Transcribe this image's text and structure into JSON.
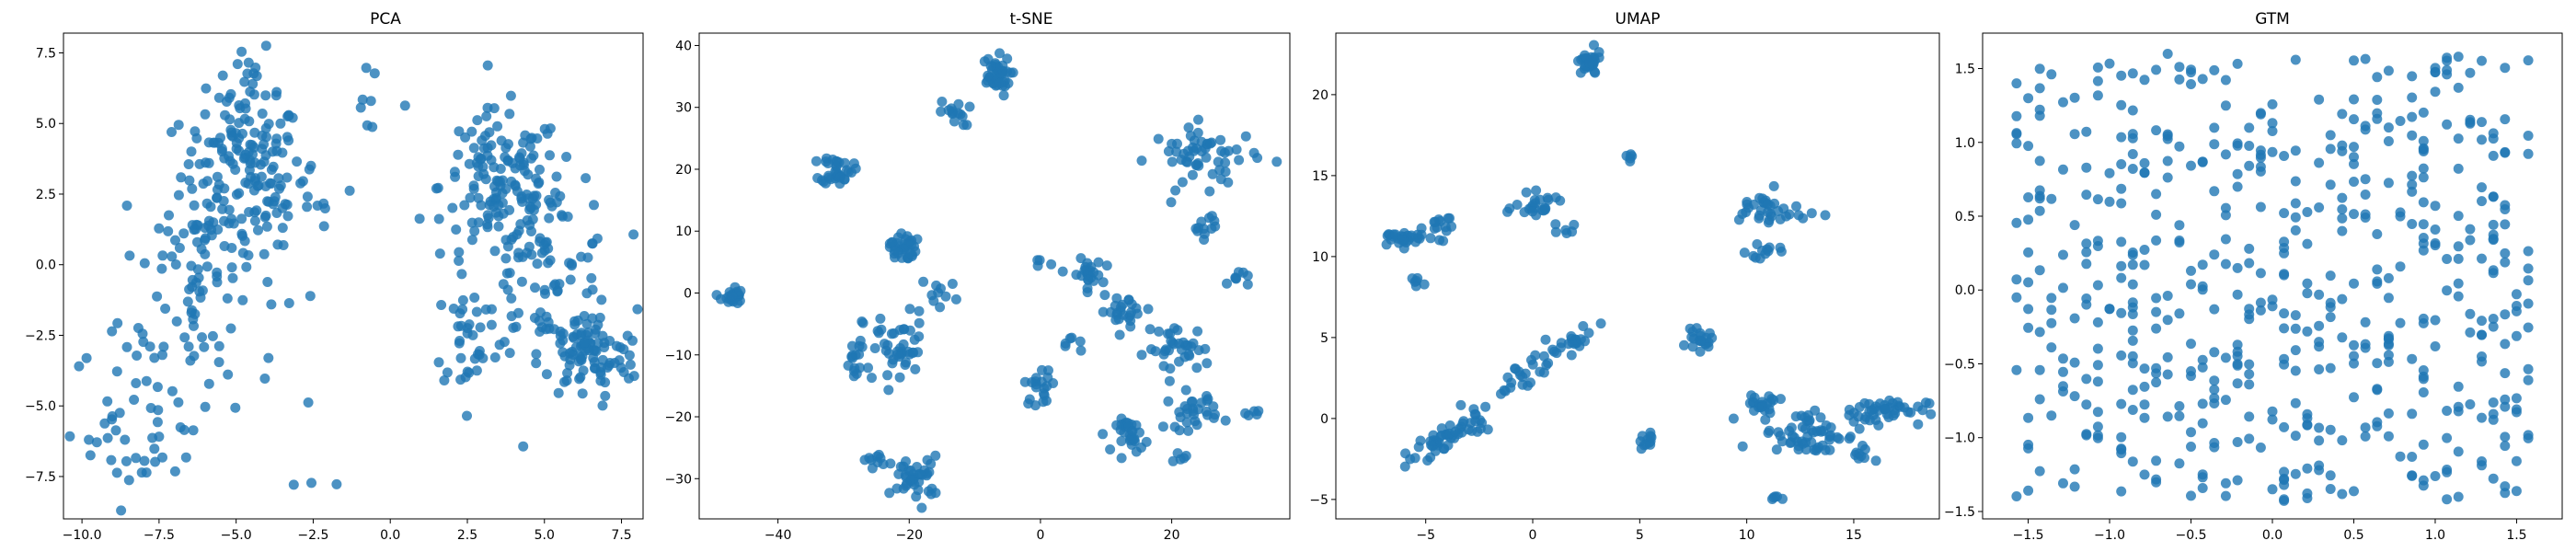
{
  "figure": {
    "point_color": "#1f77b4",
    "point_alpha": 0.8
  },
  "chart_data": [
    {
      "type": "scatter",
      "title": "PCA",
      "xlabel": "",
      "ylabel": "",
      "xlim": [
        -10.6,
        8.2
      ],
      "ylim": [
        -9.0,
        8.2
      ],
      "xticks": [
        -10.0,
        -7.5,
        -5.0,
        -2.5,
        0.0,
        2.5,
        5.0,
        7.5
      ],
      "xtick_labels": [
        "−10.0",
        "−7.5",
        "−5.0",
        "−2.5",
        "0.0",
        "2.5",
        "5.0",
        "7.5"
      ],
      "yticks": [
        -7.5,
        -5.0,
        -2.5,
        0.0,
        2.5,
        5.0,
        7.5
      ],
      "yticklabels": [
        "−7.5",
        "−5.0",
        "−2.5",
        "0.0",
        "2.5",
        "5.0",
        "7.5"
      ],
      "clusters": [
        {
          "cx": -4.8,
          "cy": 3.2,
          "sx": 1.0,
          "sy": 1.4,
          "n": 140
        },
        {
          "cx": -6.2,
          "cy": -0.5,
          "sx": 1.3,
          "sy": 2.2,
          "n": 90
        },
        {
          "cx": -8.0,
          "cy": -5.5,
          "sx": 1.2,
          "sy": 1.5,
          "n": 50
        },
        {
          "cx": -4.5,
          "cy": 6.0,
          "sx": 0.5,
          "sy": 0.8,
          "n": 25
        },
        {
          "cx": -1.0,
          "cy": 5.8,
          "sx": 0.8,
          "sy": 0.5,
          "n": 8
        },
        {
          "cx": 3.6,
          "cy": 2.8,
          "sx": 1.0,
          "sy": 1.3,
          "n": 130
        },
        {
          "cx": 5.0,
          "cy": 0.0,
          "sx": 1.2,
          "sy": 1.6,
          "n": 100
        },
        {
          "cx": 6.4,
          "cy": -3.2,
          "sx": 0.8,
          "sy": 0.8,
          "n": 90
        },
        {
          "cx": 2.6,
          "cy": -2.5,
          "sx": 0.6,
          "sy": 1.0,
          "n": 30
        },
        {
          "cx": -2.5,
          "cy": 2.0,
          "sx": 0.8,
          "sy": 0.8,
          "n": 12
        },
        {
          "cx": -2.0,
          "cy": -7.8,
          "sx": 0.6,
          "sy": 0.1,
          "n": 3
        }
      ]
    },
    {
      "type": "scatter",
      "title": "t-SNE",
      "xlabel": "",
      "ylabel": "",
      "xlim": [
        -52,
        38
      ],
      "ylim": [
        -36.5,
        42
      ],
      "xticks": [
        -40,
        -20,
        0,
        20
      ],
      "xtick_labels": [
        "−40",
        "−20",
        "0",
        "20"
      ],
      "yticks": [
        -30,
        -20,
        -10,
        0,
        10,
        20,
        30,
        40
      ],
      "yticklabels": [
        "−30",
        "−20",
        "−10",
        "0",
        "10",
        "20",
        "30",
        "40"
      ],
      "clusters": [
        {
          "cx": -47,
          "cy": -0.5,
          "sx": 0.8,
          "sy": 0.8,
          "n": 25
        },
        {
          "cx": -31,
          "cy": 20,
          "sx": 1.2,
          "sy": 1.2,
          "n": 35
        },
        {
          "cx": -7,
          "cy": 35,
          "sx": 1.2,
          "sy": 1.6,
          "n": 40
        },
        {
          "cx": -13,
          "cy": 29,
          "sx": 1.2,
          "sy": 1.0,
          "n": 15
        },
        {
          "cx": -21,
          "cy": 7.5,
          "sx": 1.0,
          "sy": 1.2,
          "n": 35
        },
        {
          "cx": -22,
          "cy": -9,
          "sx": 2.5,
          "sy": 3.0,
          "n": 45
        },
        {
          "cx": -28,
          "cy": -12,
          "sx": 1.0,
          "sy": 1.8,
          "n": 15
        },
        {
          "cx": -19,
          "cy": -30,
          "sx": 1.8,
          "sy": 1.8,
          "n": 40
        },
        {
          "cx": -25,
          "cy": -27,
          "sx": 1.0,
          "sy": 0.6,
          "n": 10
        },
        {
          "cx": -15,
          "cy": 0,
          "sx": 1.5,
          "sy": 1.5,
          "n": 10
        },
        {
          "cx": 0,
          "cy": -15,
          "sx": 1.2,
          "sy": 1.5,
          "n": 20
        },
        {
          "cx": 7,
          "cy": 3,
          "sx": 1.2,
          "sy": 1.2,
          "n": 25
        },
        {
          "cx": 13,
          "cy": -3,
          "sx": 2.0,
          "sy": 1.2,
          "n": 25
        },
        {
          "cx": 21,
          "cy": -9,
          "sx": 2.5,
          "sy": 2.0,
          "n": 35
        },
        {
          "cx": 14,
          "cy": -23,
          "sx": 1.2,
          "sy": 1.3,
          "n": 30
        },
        {
          "cx": 23,
          "cy": -19,
          "sx": 2.0,
          "sy": 1.5,
          "n": 30
        },
        {
          "cx": 25,
          "cy": 22,
          "sx": 4.0,
          "sy": 2.5,
          "n": 55
        },
        {
          "cx": 25,
          "cy": 11,
          "sx": 1.0,
          "sy": 1.0,
          "n": 12
        },
        {
          "cx": 30,
          "cy": 2.5,
          "sx": 0.8,
          "sy": 0.8,
          "n": 8
        },
        {
          "cx": 32,
          "cy": -19.5,
          "sx": 0.8,
          "sy": 0.4,
          "n": 5
        },
        {
          "cx": 22,
          "cy": -27,
          "sx": 1.0,
          "sy": 0.5,
          "n": 5
        },
        {
          "cx": 5,
          "cy": -8,
          "sx": 0.8,
          "sy": 0.8,
          "n": 6
        },
        {
          "cx": 0,
          "cy": 5,
          "sx": 0.6,
          "sy": 0.5,
          "n": 4
        }
      ]
    },
    {
      "type": "scatter",
      "title": "UMAP",
      "xlabel": "",
      "ylabel": "",
      "xlim": [
        -9.2,
        19.0
      ],
      "ylim": [
        -6.2,
        23.8
      ],
      "xticks": [
        -5,
        0,
        5,
        10,
        15
      ],
      "xtick_labels": [
        "−5",
        "0",
        "5",
        "10",
        "15"
      ],
      "yticks": [
        -5,
        0,
        5,
        10,
        15,
        20
      ],
      "yticklabels": [
        "−5",
        "0",
        "5",
        "10",
        "15",
        "20"
      ],
      "clusters": [
        {
          "cx": -6.0,
          "cy": 11.1,
          "sx": 0.7,
          "sy": 0.25,
          "n": 30
        },
        {
          "cx": -4.3,
          "cy": 12.2,
          "sx": 0.3,
          "sy": 0.5,
          "n": 12
        },
        {
          "cx": -5.4,
          "cy": 8.6,
          "sx": 0.2,
          "sy": 0.3,
          "n": 6
        },
        {
          "cx": 0.4,
          "cy": 13.0,
          "sx": 0.6,
          "sy": 0.4,
          "n": 25
        },
        {
          "cx": 1.6,
          "cy": 11.5,
          "sx": 0.2,
          "sy": 0.2,
          "n": 5
        },
        {
          "cx": 2.6,
          "cy": 21.9,
          "sx": 0.3,
          "sy": 0.4,
          "n": 30
        },
        {
          "cx": 4.6,
          "cy": 16.2,
          "sx": 0.15,
          "sy": 0.15,
          "n": 5
        },
        {
          "cx": 11.0,
          "cy": 12.8,
          "sx": 0.9,
          "sy": 0.6,
          "n": 35
        },
        {
          "cx": 10.8,
          "cy": 10.3,
          "sx": 0.4,
          "sy": 0.3,
          "n": 12
        },
        {
          "cx": 7.8,
          "cy": 4.8,
          "sx": 0.3,
          "sy": 0.3,
          "n": 20
        },
        {
          "cx": 10.7,
          "cy": 1.0,
          "sx": 0.4,
          "sy": 0.25,
          "n": 20
        },
        {
          "cx": 13.0,
          "cy": -0.9,
          "sx": 1.2,
          "sy": 0.7,
          "n": 60
        },
        {
          "cx": 16.0,
          "cy": 0.5,
          "sx": 1.2,
          "sy": 0.4,
          "n": 45
        },
        {
          "cx": 15.2,
          "cy": -2.3,
          "sx": 0.3,
          "sy": 0.3,
          "n": 8
        },
        {
          "cx": 5.3,
          "cy": -1.4,
          "sx": 0.15,
          "sy": 0.25,
          "n": 12
        },
        {
          "cx": 11.3,
          "cy": -5.0,
          "sx": 0.2,
          "sy": 0.1,
          "n": 5
        }
      ],
      "lines": [
        {
          "x0": -6.0,
          "y0": -2.5,
          "x1": -2.5,
          "y1": 0.0,
          "n": 55,
          "jitter": 0.35
        },
        {
          "x0": -1.5,
          "y0": 1.8,
          "x1": 3.0,
          "y1": 5.8,
          "n": 45,
          "jitter": 0.3
        }
      ]
    },
    {
      "type": "scatter",
      "title": "GTM",
      "xlabel": "",
      "ylabel": "",
      "xlim": [
        -1.78,
        1.78
      ],
      "ylim": [
        -1.55,
        1.74
      ],
      "xticks": [
        -1.5,
        -1.0,
        -0.5,
        0.0,
        0.5,
        1.0,
        1.5
      ],
      "xtick_labels": [
        "−1.5",
        "−1.0",
        "−0.5",
        "0.0",
        "0.5",
        "1.0",
        "1.5"
      ],
      "yticks": [
        -1.5,
        -1.0,
        -0.5,
        0.0,
        0.5,
        1.0,
        1.5
      ],
      "yticklabels": [
        "−1.5",
        "−1.0",
        "−0.5",
        "0.0",
        "0.5",
        "1.0",
        "1.5"
      ],
      "grid_scatter": {
        "xmin": -1.6,
        "xmax": 1.6,
        "ymin": -1.45,
        "ymax": 1.6,
        "n": 560
      }
    }
  ]
}
